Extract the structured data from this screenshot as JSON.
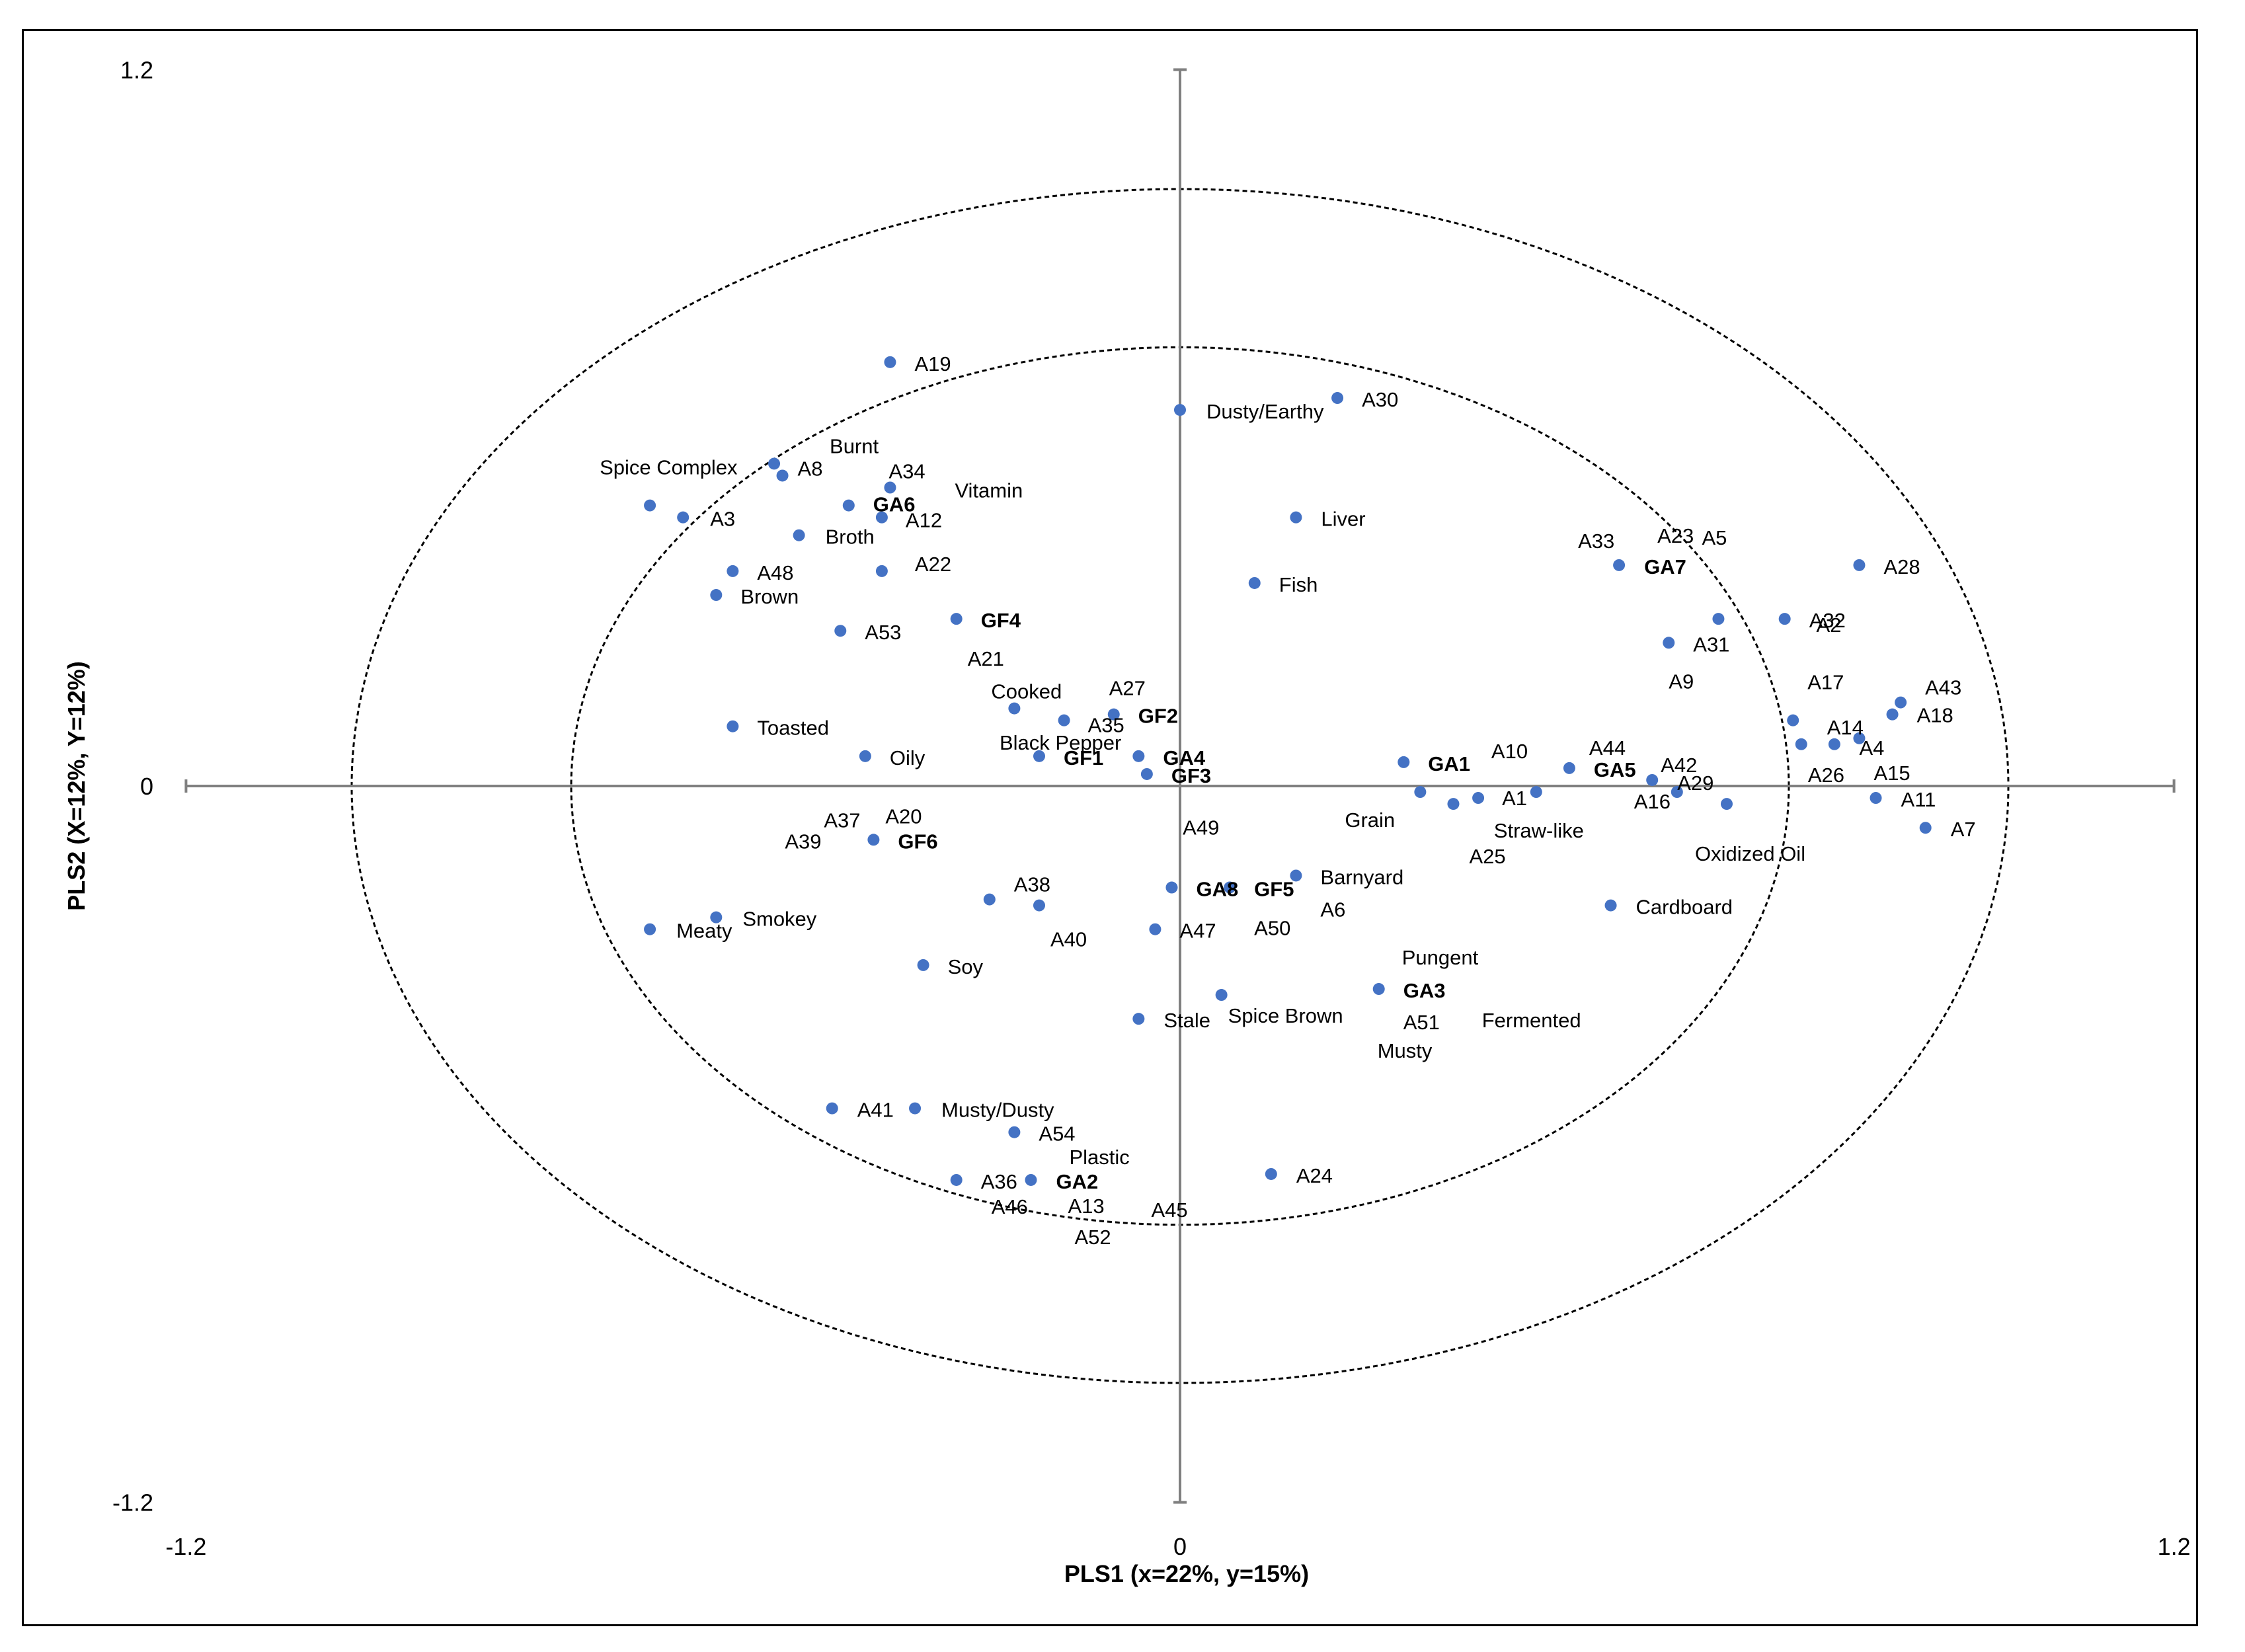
{
  "chart_data": {
    "type": "scatter",
    "title": "",
    "xlabel": "PLS1 (x=22%, y=15%)",
    "ylabel": "PLS2 (X=12%, Y=12%)",
    "xlim": [
      -1.2,
      1.2
    ],
    "ylim": [
      -1.2,
      1.2
    ],
    "x_ticks": [
      "-1.2",
      "0",
      "1.2"
    ],
    "y_ticks": [
      "1.2",
      "0",
      "-1.2"
    ],
    "grid": false,
    "legend": "none",
    "marker_color": "#4472C4",
    "reference_ellipses": [
      {
        "name": "outer",
        "rx": 1.0,
        "ry": 1.0
      },
      {
        "name": "inner",
        "rx": 0.735,
        "ry": 0.735
      }
    ],
    "points": [
      {
        "label": "A19",
        "x": -0.35,
        "y": 0.71,
        "bold": false
      },
      {
        "label": "A30",
        "x": 0.19,
        "y": 0.65,
        "bold": false
      },
      {
        "label": "Dusty/Earthy",
        "x": 0.0,
        "y": 0.63,
        "bold": false
      },
      {
        "label": "Burnt",
        "x": -0.49,
        "y": 0.54,
        "bold": false
      },
      {
        "label": "A8",
        "x": -0.48,
        "y": 0.52,
        "bold": false
      },
      {
        "label": "A34",
        "x": -0.35,
        "y": 0.5,
        "bold": false
      },
      {
        "label": "Vitamin",
        "x": -0.35,
        "y": 0.5,
        "bold": false
      },
      {
        "label": "Spice Complex",
        "x": -0.64,
        "y": 0.47,
        "bold": false
      },
      {
        "label": "A3",
        "x": -0.6,
        "y": 0.45,
        "bold": false
      },
      {
        "label": "GA6",
        "x": -0.4,
        "y": 0.47,
        "bold": true
      },
      {
        "label": "A12",
        "x": -0.36,
        "y": 0.45,
        "bold": false
      },
      {
        "label": "Broth",
        "x": -0.46,
        "y": 0.42,
        "bold": false
      },
      {
        "label": "Liver",
        "x": 0.14,
        "y": 0.45,
        "bold": false
      },
      {
        "label": "A48",
        "x": -0.54,
        "y": 0.36,
        "bold": false
      },
      {
        "label": "A22",
        "x": -0.36,
        "y": 0.36,
        "bold": false
      },
      {
        "label": "Brown",
        "x": -0.56,
        "y": 0.32,
        "bold": false
      },
      {
        "label": "Fish",
        "x": 0.09,
        "y": 0.34,
        "bold": false
      },
      {
        "label": "A33",
        "x": 0.53,
        "y": 0.37,
        "bold": false
      },
      {
        "label": "A23",
        "x": 0.53,
        "y": 0.37,
        "bold": false
      },
      {
        "label": "GA7",
        "x": 0.53,
        "y": 0.37,
        "bold": true
      },
      {
        "label": "A2",
        "x": 0.65,
        "y": 0.28,
        "bold": false
      },
      {
        "label": "A28",
        "x": 0.82,
        "y": 0.37,
        "bold": false
      },
      {
        "label": "A9",
        "x": 0.59,
        "y": 0.24,
        "bold": false
      },
      {
        "label": "A5",
        "x": 0.65,
        "y": 0.28,
        "bold": false
      },
      {
        "label": "A32",
        "x": 0.73,
        "y": 0.28,
        "bold": false
      },
      {
        "label": "A31",
        "x": 0.59,
        "y": 0.24,
        "bold": false
      },
      {
        "label": "GF4",
        "x": -0.27,
        "y": 0.28,
        "bold": true
      },
      {
        "label": "A53",
        "x": -0.41,
        "y": 0.26,
        "bold": false
      },
      {
        "label": "A21",
        "x": -0.27,
        "y": 0.28,
        "bold": false
      },
      {
        "label": "Cooked",
        "x": -0.2,
        "y": 0.13,
        "bold": false
      },
      {
        "label": "A27",
        "x": -0.08,
        "y": 0.12,
        "bold": false
      },
      {
        "label": "A35",
        "x": -0.14,
        "y": 0.11,
        "bold": false
      },
      {
        "label": "GF2",
        "x": -0.08,
        "y": 0.12,
        "bold": true
      },
      {
        "label": "Toasted",
        "x": -0.54,
        "y": 0.1,
        "bold": false
      },
      {
        "label": "Oily",
        "x": -0.38,
        "y": 0.05,
        "bold": false
      },
      {
        "label": "Black Pepper",
        "x": -0.17,
        "y": 0.05,
        "bold": false
      },
      {
        "label": "GF1",
        "x": -0.17,
        "y": 0.05,
        "bold": true
      },
      {
        "label": "GA4",
        "x": -0.05,
        "y": 0.05,
        "bold": true
      },
      {
        "label": "GF3",
        "x": -0.04,
        "y": 0.02,
        "bold": true
      },
      {
        "label": "GA1",
        "x": 0.27,
        "y": 0.04,
        "bold": true
      },
      {
        "label": "A10",
        "x": 0.47,
        "y": 0.03,
        "bold": false
      },
      {
        "label": "A44",
        "x": 0.47,
        "y": 0.03,
        "bold": false
      },
      {
        "label": "GA5",
        "x": 0.47,
        "y": 0.03,
        "bold": true
      },
      {
        "label": "A42",
        "x": 0.57,
        "y": 0.01,
        "bold": false
      },
      {
        "label": "A29",
        "x": 0.57,
        "y": 0.01,
        "bold": false
      },
      {
        "label": "A16",
        "x": 0.6,
        "y": -0.01,
        "bold": false
      },
      {
        "label": "A17",
        "x": 0.74,
        "y": 0.11,
        "bold": false
      },
      {
        "label": "A43",
        "x": 0.87,
        "y": 0.14,
        "bold": false
      },
      {
        "label": "A18",
        "x": 0.86,
        "y": 0.12,
        "bold": false
      },
      {
        "label": "A14",
        "x": 0.75,
        "y": 0.07,
        "bold": false
      },
      {
        "label": "A4",
        "x": 0.82,
        "y": 0.08,
        "bold": false
      },
      {
        "label": "A26",
        "x": 0.79,
        "y": 0.07,
        "bold": false
      },
      {
        "label": "A15",
        "x": 0.82,
        "y": 0.08,
        "bold": false
      },
      {
        "label": "A11",
        "x": 0.84,
        "y": -0.02,
        "bold": false
      },
      {
        "label": "A7",
        "x": 0.9,
        "y": -0.07,
        "bold": false
      },
      {
        "label": "Oxidized Oil",
        "x": 0.66,
        "y": -0.03,
        "bold": false
      },
      {
        "label": "A1",
        "x": 0.36,
        "y": -0.02,
        "bold": false
      },
      {
        "label": "A25",
        "x": 0.33,
        "y": -0.03,
        "bold": false
      },
      {
        "label": "Grain",
        "x": 0.29,
        "y": -0.01,
        "bold": false
      },
      {
        "label": "Straw-like",
        "x": 0.43,
        "y": -0.01,
        "bold": false
      },
      {
        "label": "A37",
        "x": -0.37,
        "y": -0.09,
        "bold": false
      },
      {
        "label": "A20",
        "x": -0.37,
        "y": -0.09,
        "bold": false
      },
      {
        "label": "A39",
        "x": -0.37,
        "y": -0.09,
        "bold": false
      },
      {
        "label": "GF6",
        "x": -0.37,
        "y": -0.09,
        "bold": true
      },
      {
        "label": "A49",
        "x": 0.06,
        "y": -0.17,
        "bold": false
      },
      {
        "label": "Barnyard",
        "x": 0.14,
        "y": -0.15,
        "bold": false
      },
      {
        "label": "A6",
        "x": 0.14,
        "y": -0.15,
        "bold": false
      },
      {
        "label": "GA8",
        "x": -0.01,
        "y": -0.17,
        "bold": true
      },
      {
        "label": "GF5",
        "x": 0.06,
        "y": -0.17,
        "bold": true
      },
      {
        "label": "A50",
        "x": 0.06,
        "y": -0.17,
        "bold": false
      },
      {
        "label": "A38",
        "x": -0.23,
        "y": -0.19,
        "bold": false
      },
      {
        "label": "A40",
        "x": -0.17,
        "y": -0.2,
        "bold": false
      },
      {
        "label": "A47",
        "x": -0.03,
        "y": -0.24,
        "bold": false
      },
      {
        "label": "Cardboard",
        "x": 0.52,
        "y": -0.2,
        "bold": false
      },
      {
        "label": "Smokey",
        "x": -0.56,
        "y": -0.22,
        "bold": false
      },
      {
        "label": "Meaty",
        "x": -0.64,
        "y": -0.24,
        "bold": false
      },
      {
        "label": "Soy",
        "x": -0.31,
        "y": -0.3,
        "bold": false
      },
      {
        "label": "Pungent",
        "x": 0.24,
        "y": -0.34,
        "bold": false
      },
      {
        "label": "GA3",
        "x": 0.24,
        "y": -0.34,
        "bold": true
      },
      {
        "label": "Spice Brown",
        "x": 0.05,
        "y": -0.35,
        "bold": false
      },
      {
        "label": "A51",
        "x": 0.24,
        "y": -0.34,
        "bold": false
      },
      {
        "label": "Fermented",
        "x": 0.24,
        "y": -0.34,
        "bold": false
      },
      {
        "label": "Stale",
        "x": -0.05,
        "y": -0.39,
        "bold": false
      },
      {
        "label": "Musty",
        "x": 0.24,
        "y": -0.34,
        "bold": false
      },
      {
        "label": "A41",
        "x": -0.42,
        "y": -0.54,
        "bold": false
      },
      {
        "label": "Musty/Dusty",
        "x": -0.32,
        "y": -0.54,
        "bold": false
      },
      {
        "label": "A54",
        "x": -0.2,
        "y": -0.58,
        "bold": false
      },
      {
        "label": "Plastic",
        "x": -0.18,
        "y": -0.66,
        "bold": false
      },
      {
        "label": "A24",
        "x": 0.11,
        "y": -0.65,
        "bold": false
      },
      {
        "label": "A36",
        "x": -0.27,
        "y": -0.66,
        "bold": false
      },
      {
        "label": "GA2",
        "x": -0.18,
        "y": -0.66,
        "bold": true
      },
      {
        "label": "A46",
        "x": -0.27,
        "y": -0.66,
        "bold": false
      },
      {
        "label": "A13",
        "x": -0.18,
        "y": -0.66,
        "bold": false
      },
      {
        "label": "A45",
        "x": -0.18,
        "y": -0.66,
        "bold": false
      },
      {
        "label": "A52",
        "x": -0.18,
        "y": -0.66,
        "bold": false
      }
    ]
  }
}
